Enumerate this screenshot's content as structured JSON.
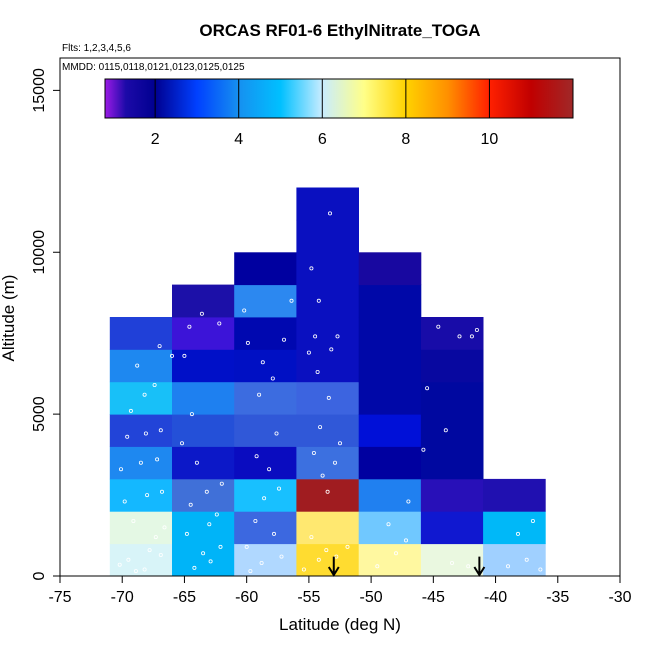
{
  "chart_data": {
    "type": "heatmap",
    "title": "ORCAS RF01-6 EthylNitrate_TOGA",
    "flights_note": "Flts: 1,2,3,4,5,6",
    "dates_note": "MMDD: 0115,0118,0121,0123,0125,0125",
    "xlabel": "Latitude (deg N)",
    "ylabel": "Altitude (m)",
    "xlim": [
      -75,
      -30
    ],
    "ylim": [
      0,
      16000
    ],
    "xticks": [
      -75,
      -70,
      -65,
      -60,
      -55,
      -50,
      -45,
      -40,
      -35,
      -30
    ],
    "yticks": [
      0,
      5000,
      10000,
      15000
    ],
    "colorbar": {
      "min": 0.8,
      "max": 12,
      "ticks": [
        2,
        4,
        6,
        8,
        10
      ],
      "stops": [
        {
          "v": 0.8,
          "c": "#9b1be6"
        },
        {
          "v": 1.3,
          "c": "#1c0aa8"
        },
        {
          "v": 2.0,
          "c": "#000090"
        },
        {
          "v": 3.0,
          "c": "#0040ff"
        },
        {
          "v": 4.0,
          "c": "#1690f0"
        },
        {
          "v": 5.0,
          "c": "#00c0ff"
        },
        {
          "v": 6.0,
          "c": "#c8ecff"
        },
        {
          "v": 7.0,
          "c": "#ffff88"
        },
        {
          "v": 8.0,
          "c": "#ffd200"
        },
        {
          "v": 9.0,
          "c": "#ff9000"
        },
        {
          "v": 10.0,
          "c": "#ff2000"
        },
        {
          "v": 11.0,
          "c": "#c00000"
        },
        {
          "v": 12.0,
          "c": "#a02828"
        }
      ]
    },
    "cell_width_deg": 5,
    "cell_height_m": 1000,
    "cells": [
      {
        "lat": [
          -71,
          -66
        ],
        "alt": [
          0,
          1000
        ],
        "c": "#d8f4f8"
      },
      {
        "lat": [
          -71,
          -66
        ],
        "alt": [
          1000,
          2000
        ],
        "c": "#e4f8e4"
      },
      {
        "lat": [
          -71,
          -66
        ],
        "alt": [
          2000,
          3000
        ],
        "c": "#14b8ff"
      },
      {
        "lat": [
          -71,
          -66
        ],
        "alt": [
          3000,
          4000
        ],
        "c": "#1e88f0"
      },
      {
        "lat": [
          -71,
          -66
        ],
        "alt": [
          4000,
          5000
        ],
        "c": "#2244d8"
      },
      {
        "lat": [
          -71,
          -66
        ],
        "alt": [
          5000,
          6000
        ],
        "c": "#18c0f8"
      },
      {
        "lat": [
          -71,
          -66
        ],
        "alt": [
          6000,
          7000
        ],
        "c": "#1e88f0"
      },
      {
        "lat": [
          -71,
          -66
        ],
        "alt": [
          7000,
          8000
        ],
        "c": "#2040d8"
      },
      {
        "lat": [
          -66,
          -61
        ],
        "alt": [
          0,
          1000
        ],
        "c": "#00b4f8"
      },
      {
        "lat": [
          -66,
          -61
        ],
        "alt": [
          1000,
          2000
        ],
        "c": "#00b4f8"
      },
      {
        "lat": [
          -66,
          -61
        ],
        "alt": [
          2000,
          3000
        ],
        "c": "#4070d8"
      },
      {
        "lat": [
          -66,
          -61
        ],
        "alt": [
          3000,
          4000
        ],
        "c": "#0c18c8"
      },
      {
        "lat": [
          -66,
          -61
        ],
        "alt": [
          4000,
          5000
        ],
        "c": "#2450d8"
      },
      {
        "lat": [
          -66,
          -61
        ],
        "alt": [
          5000,
          6000
        ],
        "c": "#1e80f0"
      },
      {
        "lat": [
          -66,
          -61
        ],
        "alt": [
          6000,
          7000
        ],
        "c": "#0010c8"
      },
      {
        "lat": [
          -66,
          -61
        ],
        "alt": [
          7000,
          8000
        ],
        "c": "#3c14d8"
      },
      {
        "lat": [
          -66,
          -61
        ],
        "alt": [
          8000,
          9000
        ],
        "c": "#1c10a8"
      },
      {
        "lat": [
          -61,
          -56
        ],
        "alt": [
          0,
          1000
        ],
        "c": "#b0d8ff"
      },
      {
        "lat": [
          -61,
          -56
        ],
        "alt": [
          1000,
          2000
        ],
        "c": "#3c68e0"
      },
      {
        "lat": [
          -61,
          -56
        ],
        "alt": [
          2000,
          3000
        ],
        "c": "#18c0ff"
      },
      {
        "lat": [
          -61,
          -56
        ],
        "alt": [
          3000,
          4000
        ],
        "c": "#0a0cc0"
      },
      {
        "lat": [
          -61,
          -56
        ],
        "alt": [
          4000,
          5000
        ],
        "c": "#3058d8"
      },
      {
        "lat": [
          -61,
          -56
        ],
        "alt": [
          5000,
          6000
        ],
        "c": "#3c6ce0"
      },
      {
        "lat": [
          -61,
          -56
        ],
        "alt": [
          6000,
          7000
        ],
        "c": "#0010c4"
      },
      {
        "lat": [
          -61,
          -56
        ],
        "alt": [
          7000,
          8000
        ],
        "c": "#0008b0"
      },
      {
        "lat": [
          -61,
          -56
        ],
        "alt": [
          8000,
          9000
        ],
        "c": "#2c88f0"
      },
      {
        "lat": [
          -61,
          -56
        ],
        "alt": [
          9000,
          10000
        ],
        "c": "#0000a0"
      },
      {
        "lat": [
          -56,
          -51
        ],
        "alt": [
          0,
          1000
        ],
        "c": "#ffdc30"
      },
      {
        "lat": [
          -56,
          -51
        ],
        "alt": [
          1000,
          2000
        ],
        "c": "#ffe870"
      },
      {
        "lat": [
          -56,
          -51
        ],
        "alt": [
          2000,
          3000
        ],
        "c": "#a01c20"
      },
      {
        "lat": [
          -56,
          -51
        ],
        "alt": [
          3000,
          4000
        ],
        "c": "#3c70e0"
      },
      {
        "lat": [
          -56,
          -51
        ],
        "alt": [
          4000,
          5000
        ],
        "c": "#3058d8"
      },
      {
        "lat": [
          -56,
          -51
        ],
        "alt": [
          5000,
          6000
        ],
        "c": "#3c64e0"
      },
      {
        "lat": [
          -56,
          -51
        ],
        "alt": [
          6000,
          7000
        ],
        "c": "#0a10c0"
      },
      {
        "lat": [
          -56,
          -51
        ],
        "alt": [
          7000,
          8000
        ],
        "c": "#0a10c0"
      },
      {
        "lat": [
          -56,
          -51
        ],
        "alt": [
          8000,
          9000
        ],
        "c": "#0a10c0"
      },
      {
        "lat": [
          -56,
          -51
        ],
        "alt": [
          9000,
          10000
        ],
        "c": "#0a10c0"
      },
      {
        "lat": [
          -56,
          -51
        ],
        "alt": [
          10000,
          11000
        ],
        "c": "#0a10c0"
      },
      {
        "lat": [
          -56,
          -51
        ],
        "alt": [
          11000,
          12000
        ],
        "c": "#0a10c0"
      },
      {
        "lat": [
          -51,
          -46
        ],
        "alt": [
          0,
          1000
        ],
        "c": "#fff8a0"
      },
      {
        "lat": [
          -51,
          -46
        ],
        "alt": [
          1000,
          2000
        ],
        "c": "#70c8ff"
      },
      {
        "lat": [
          -51,
          -46
        ],
        "alt": [
          2000,
          3000
        ],
        "c": "#2080f0"
      },
      {
        "lat": [
          -51,
          -46
        ],
        "alt": [
          3000,
          4000
        ],
        "c": "#0000a0"
      },
      {
        "lat": [
          -51,
          -46
        ],
        "alt": [
          4000,
          5000
        ],
        "c": "#0010d8"
      },
      {
        "lat": [
          -51,
          -46
        ],
        "alt": [
          5000,
          6000
        ],
        "c": "#0008a8"
      },
      {
        "lat": [
          -51,
          -46
        ],
        "alt": [
          6000,
          7000
        ],
        "c": "#0008a8"
      },
      {
        "lat": [
          -51,
          -46
        ],
        "alt": [
          7000,
          8000
        ],
        "c": "#0008a8"
      },
      {
        "lat": [
          -51,
          -46
        ],
        "alt": [
          8000,
          9000
        ],
        "c": "#0008a8"
      },
      {
        "lat": [
          -51,
          -46
        ],
        "alt": [
          9000,
          10000
        ],
        "c": "#1808a0"
      },
      {
        "lat": [
          -46,
          -41
        ],
        "alt": [
          0,
          1000
        ],
        "c": "#eaf8e0"
      },
      {
        "lat": [
          -46,
          -41
        ],
        "alt": [
          1000,
          2000
        ],
        "c": "#1018d0"
      },
      {
        "lat": [
          -46,
          -41
        ],
        "alt": [
          2000,
          3000
        ],
        "c": "#2810b8"
      },
      {
        "lat": [
          -46,
          -41
        ],
        "alt": [
          3000,
          4000
        ],
        "c": "#0008a0"
      },
      {
        "lat": [
          -46,
          -41
        ],
        "alt": [
          4000,
          5000
        ],
        "c": "#0008a0"
      },
      {
        "lat": [
          -46,
          -41
        ],
        "alt": [
          5000,
          6000
        ],
        "c": "#0008a0"
      },
      {
        "lat": [
          -46,
          -41
        ],
        "alt": [
          6000,
          7000
        ],
        "c": "#0808a0"
      },
      {
        "lat": [
          -46,
          -41
        ],
        "alt": [
          7000,
          8000
        ],
        "c": "#180ca8"
      },
      {
        "lat": [
          -41,
          -36
        ],
        "alt": [
          0,
          1000
        ],
        "c": "#a0d0ff"
      },
      {
        "lat": [
          -41,
          -36
        ],
        "alt": [
          1000,
          2000
        ],
        "c": "#00b8f8"
      },
      {
        "lat": [
          -41,
          -36
        ],
        "alt": [
          2000,
          3000
        ],
        "c": "#2010b0"
      }
    ],
    "points": [
      {
        "lat": -68.2,
        "alt": 200
      },
      {
        "lat": -69.5,
        "alt": 500
      },
      {
        "lat": -67.8,
        "alt": 800
      },
      {
        "lat": -70.2,
        "alt": 350
      },
      {
        "lat": -66.9,
        "alt": 650
      },
      {
        "lat": -68.9,
        "alt": 150
      },
      {
        "lat": -67.3,
        "alt": 1200
      },
      {
        "lat": -69.1,
        "alt": 1700
      },
      {
        "lat": -66.6,
        "alt": 1500
      },
      {
        "lat": -69.8,
        "alt": 2300
      },
      {
        "lat": -68.0,
        "alt": 2500
      },
      {
        "lat": -66.8,
        "alt": 2600
      },
      {
        "lat": -70.1,
        "alt": 3300
      },
      {
        "lat": -68.5,
        "alt": 3500
      },
      {
        "lat": -67.2,
        "alt": 3600
      },
      {
        "lat": -69.6,
        "alt": 4300
      },
      {
        "lat": -68.1,
        "alt": 4400
      },
      {
        "lat": -66.9,
        "alt": 4500
      },
      {
        "lat": -69.3,
        "alt": 5100
      },
      {
        "lat": -68.2,
        "alt": 5600
      },
      {
        "lat": -67.4,
        "alt": 5900
      },
      {
        "lat": -68.8,
        "alt": 6500
      },
      {
        "lat": -66.0,
        "alt": 6800
      },
      {
        "lat": -67.0,
        "alt": 7100
      },
      {
        "lat": -64.2,
        "alt": 250
      },
      {
        "lat": -62.9,
        "alt": 450
      },
      {
        "lat": -63.5,
        "alt": 700
      },
      {
        "lat": -62.1,
        "alt": 900
      },
      {
        "lat": -64.8,
        "alt": 1300
      },
      {
        "lat": -63.0,
        "alt": 1600
      },
      {
        "lat": -62.4,
        "alt": 1900
      },
      {
        "lat": -64.5,
        "alt": 2200
      },
      {
        "lat": -63.2,
        "alt": 2600
      },
      {
        "lat": -62.0,
        "alt": 2850
      },
      {
        "lat": -64.0,
        "alt": 3500
      },
      {
        "lat": -65.2,
        "alt": 4100
      },
      {
        "lat": -64.4,
        "alt": 5000
      },
      {
        "lat": -65.0,
        "alt": 6800
      },
      {
        "lat": -64.6,
        "alt": 7700
      },
      {
        "lat": -63.6,
        "alt": 8100
      },
      {
        "lat": -62.2,
        "alt": 7800
      },
      {
        "lat": -59.7,
        "alt": 150
      },
      {
        "lat": -58.8,
        "alt": 400
      },
      {
        "lat": -57.2,
        "alt": 600
      },
      {
        "lat": -60.0,
        "alt": 900
      },
      {
        "lat": -57.8,
        "alt": 1300
      },
      {
        "lat": -59.3,
        "alt": 1700
      },
      {
        "lat": -58.6,
        "alt": 2400
      },
      {
        "lat": -57.4,
        "alt": 2700
      },
      {
        "lat": -58.2,
        "alt": 3300
      },
      {
        "lat": -59.2,
        "alt": 3700
      },
      {
        "lat": -57.6,
        "alt": 4400
      },
      {
        "lat": -59.0,
        "alt": 5600
      },
      {
        "lat": -57.9,
        "alt": 6100
      },
      {
        "lat": -58.7,
        "alt": 6600
      },
      {
        "lat": -59.9,
        "alt": 7200
      },
      {
        "lat": -57.0,
        "alt": 7300
      },
      {
        "lat": -56.4,
        "alt": 8500
      },
      {
        "lat": -60.2,
        "alt": 8200
      },
      {
        "lat": -55.4,
        "alt": 200
      },
      {
        "lat": -54.2,
        "alt": 500
      },
      {
        "lat": -53.6,
        "alt": 800
      },
      {
        "lat": -52.8,
        "alt": 600
      },
      {
        "lat": -51.9,
        "alt": 900
      },
      {
        "lat": -54.8,
        "alt": 1200
      },
      {
        "lat": -53.5,
        "alt": 2600
      },
      {
        "lat": -53.9,
        "alt": 3100
      },
      {
        "lat": -52.9,
        "alt": 3500
      },
      {
        "lat": -54.6,
        "alt": 3800
      },
      {
        "lat": -52.5,
        "alt": 4100
      },
      {
        "lat": -54.1,
        "alt": 4600
      },
      {
        "lat": -53.4,
        "alt": 5500
      },
      {
        "lat": -54.3,
        "alt": 6300
      },
      {
        "lat": -55.0,
        "alt": 6900
      },
      {
        "lat": -53.2,
        "alt": 7000
      },
      {
        "lat": -54.5,
        "alt": 7400
      },
      {
        "lat": -52.7,
        "alt": 7400
      },
      {
        "lat": -54.2,
        "alt": 8500
      },
      {
        "lat": -54.8,
        "alt": 9500
      },
      {
        "lat": -53.3,
        "alt": 11200
      },
      {
        "lat": -49.5,
        "alt": 300
      },
      {
        "lat": -48.0,
        "alt": 700
      },
      {
        "lat": -47.2,
        "alt": 1100
      },
      {
        "lat": -48.6,
        "alt": 1600
      },
      {
        "lat": -47.0,
        "alt": 2300
      },
      {
        "lat": -45.8,
        "alt": 3900
      },
      {
        "lat": -45.5,
        "alt": 5800
      },
      {
        "lat": -44.6,
        "alt": 7700
      },
      {
        "lat": -43.5,
        "alt": 400
      },
      {
        "lat": -42.2,
        "alt": 300
      },
      {
        "lat": -44.0,
        "alt": 4500
      },
      {
        "lat": -41.5,
        "alt": 7600
      },
      {
        "lat": -42.9,
        "alt": 7400
      },
      {
        "lat": -41.9,
        "alt": 7400
      },
      {
        "lat": -39.0,
        "alt": 300
      },
      {
        "lat": -37.5,
        "alt": 500
      },
      {
        "lat": -36.4,
        "alt": 200
      },
      {
        "lat": -38.2,
        "alt": 1300
      },
      {
        "lat": -37.0,
        "alt": 1700
      }
    ],
    "markers": [
      {
        "type": "arrow-down",
        "lat": -53,
        "alt_top": 600,
        "alt_bottom": 0
      },
      {
        "type": "arrow-down",
        "lat": -41.3,
        "alt_top": 600,
        "alt_bottom": 0
      }
    ]
  }
}
